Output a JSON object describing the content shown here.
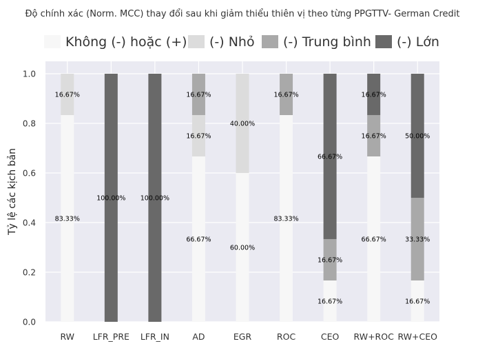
{
  "chart_data": {
    "type": "bar",
    "stacked": true,
    "title": "Độ chính xác (Norm. MCC) thay đổi sau khi giảm thiểu thiên vị theo từng PPGTTV- German Credit",
    "xlabel": "",
    "ylabel": "Tỷ lệ các kịch bản",
    "ylim": [
      0,
      1.05
    ],
    "yticks": [
      "0.0",
      "0.2",
      "0.4",
      "0.6",
      "0.8",
      "1.0"
    ],
    "grid": true,
    "legend_position": "top",
    "categories": [
      "RW",
      "LFR_PRE",
      "LFR_IN",
      "AD",
      "EGR",
      "ROC",
      "CEO",
      "RW+ROC",
      "RW+CEO"
    ],
    "series": [
      {
        "name": "Không (-) hoặc (+)",
        "color": "#f7f7f7",
        "values": [
          0.8333,
          0,
          0,
          0.6667,
          0.6,
          0.8333,
          0.1667,
          0.6667,
          0.1667
        ],
        "labels": [
          "83.33%",
          "",
          "",
          "66.67%",
          "60.00%",
          "83.33%",
          "16.67%",
          "66.67%",
          "16.67%"
        ]
      },
      {
        "name": "(-) Nhỏ",
        "color": "#dcdcdc",
        "values": [
          0.1667,
          0,
          0,
          0.1667,
          0.4,
          0,
          0,
          0,
          0
        ],
        "labels": [
          "16.67%",
          "",
          "",
          "16.67%",
          "40.00%",
          "",
          "",
          "",
          ""
        ]
      },
      {
        "name": "(-) Trung bình",
        "color": "#a9a9a9",
        "values": [
          0,
          0,
          0,
          0.1667,
          0,
          0.1667,
          0.1667,
          0.1667,
          0.3333
        ],
        "labels": [
          "",
          "",
          "",
          "16.67%",
          "",
          "16.67%",
          "16.67%",
          "16.67%",
          "33.33%"
        ]
      },
      {
        "name": "(-) Lớn",
        "color": "#696969",
        "values": [
          0,
          1.0,
          1.0,
          0,
          0,
          0,
          0.6667,
          0.1667,
          0.5
        ],
        "labels": [
          "",
          "100.00%",
          "100.00%",
          "",
          "",
          "",
          "66.67%",
          "16.67%",
          "50.00%"
        ]
      }
    ]
  }
}
